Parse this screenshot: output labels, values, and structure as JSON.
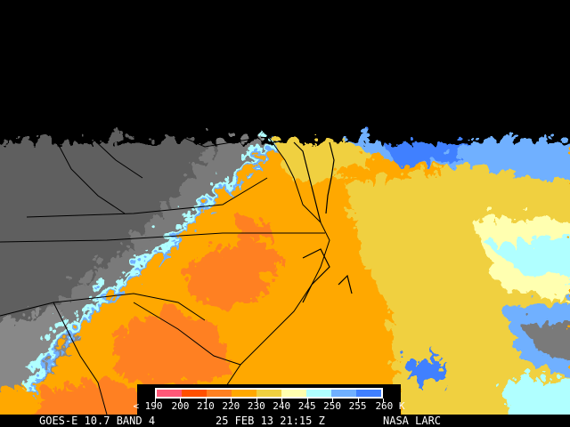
{
  "caption": {
    "satellite": "GOES-E 10.7 BAND 4",
    "datetime": "25 FEB 13 21:15 Z",
    "source": "NASA LARC"
  },
  "legend": {
    "unit": "K",
    "labels": [
      "< 190",
      "200",
      "210",
      "220",
      "230",
      "240",
      "245",
      "250",
      "255",
      "260 K"
    ],
    "colors": [
      "#ff5878",
      "#ff5000",
      "#ff8020",
      "#ffa800",
      "#f0d040",
      "#ffffb0",
      "#b0ffff",
      "#70b0ff",
      "#4080ff"
    ]
  },
  "map": {
    "no_data_color": "#000000",
    "land_gray_color": "#6a6a6a",
    "coastline_color": "#000000"
  }
}
